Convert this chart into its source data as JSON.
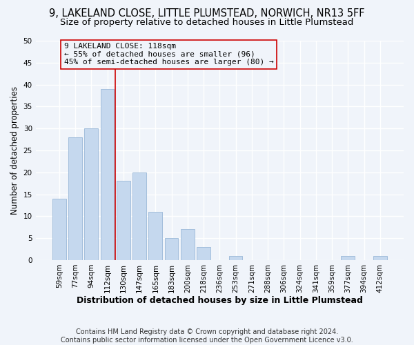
{
  "title_line1": "9, LAKELAND CLOSE, LITTLE PLUMSTEAD, NORWICH, NR13 5FF",
  "title_line2": "Size of property relative to detached houses in Little Plumstead",
  "xlabel": "Distribution of detached houses by size in Little Plumstead",
  "ylabel": "Number of detached properties",
  "categories": [
    "59sqm",
    "77sqm",
    "94sqm",
    "112sqm",
    "130sqm",
    "147sqm",
    "165sqm",
    "183sqm",
    "200sqm",
    "218sqm",
    "236sqm",
    "253sqm",
    "271sqm",
    "288sqm",
    "306sqm",
    "324sqm",
    "341sqm",
    "359sqm",
    "377sqm",
    "394sqm",
    "412sqm"
  ],
  "values": [
    14,
    28,
    30,
    39,
    18,
    20,
    11,
    5,
    7,
    3,
    0,
    1,
    0,
    0,
    0,
    0,
    0,
    0,
    1,
    0,
    1
  ],
  "bar_color": "#c5d8ee",
  "bar_edge_color": "#9ab8d8",
  "ylim": [
    0,
    50
  ],
  "yticks": [
    0,
    5,
    10,
    15,
    20,
    25,
    30,
    35,
    40,
    45,
    50
  ],
  "vline_color": "#cc0000",
  "annotation_line1": "9 LAKELAND CLOSE: 118sqm",
  "annotation_line2": "← 55% of detached houses are smaller (96)",
  "annotation_line3": "45% of semi-detached houses are larger (80) →",
  "footer_text": "Contains HM Land Registry data © Crown copyright and database right 2024.\nContains public sector information licensed under the Open Government Licence v3.0.",
  "background_color": "#f0f4fa",
  "grid_color": "#ffffff",
  "title_fontsize": 10.5,
  "subtitle_fontsize": 9.5,
  "ylabel_fontsize": 8.5,
  "xlabel_fontsize": 9,
  "tick_fontsize": 7.5,
  "annotation_fontsize": 8,
  "footer_fontsize": 7
}
